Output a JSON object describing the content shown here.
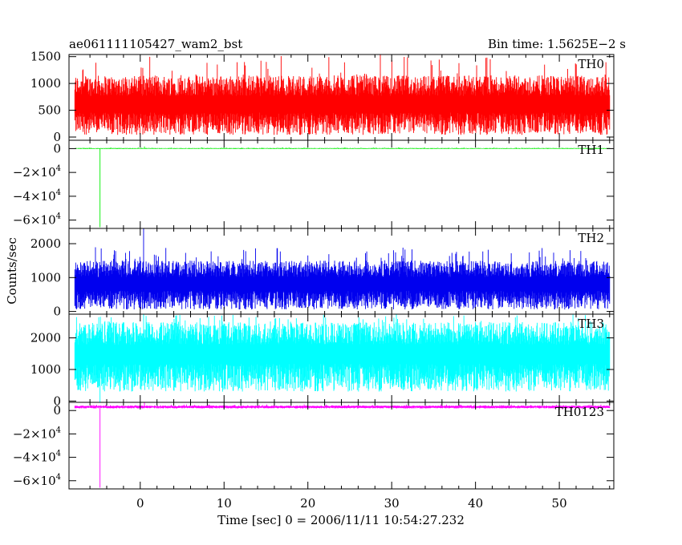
{
  "header": {
    "obs_id": "ae061111105427_wam2_bst",
    "bin_time": "Bin time: 1.5625E−2 s"
  },
  "chart_data": {
    "type": "line",
    "xlabel": "Time [sec] 0 = 2006/11/11 10:54:27.232",
    "ylabel": "Counts/sec",
    "xlim": [
      -8.5,
      56.5
    ],
    "x_range": [
      -7.8,
      56.0
    ],
    "x_ticks": [
      0,
      10,
      20,
      30,
      40,
      50
    ],
    "grid": false,
    "panels": [
      {
        "name": "TH0",
        "color": "#ff0000",
        "ylim": [
          -60,
          1540
        ],
        "y_ticks": [
          {
            "value": 0,
            "label": "0"
          },
          {
            "value": 500,
            "label": "500"
          },
          {
            "value": 1000,
            "label": "1000"
          },
          {
            "value": 1500,
            "label": "1500"
          }
        ],
        "base": 560,
        "noise_low": 40,
        "noise_high": 1150,
        "spike_max": 1540,
        "features": []
      },
      {
        "name": "TH1",
        "color": "#00ee00",
        "ylim": [
          -67000,
          7000
        ],
        "y_ticks": [
          {
            "value": 0,
            "mant": "0",
            "exp": ""
          },
          {
            "value": -20000,
            "mant": "−2×10",
            "exp": "4"
          },
          {
            "value": -40000,
            "mant": "−4×10",
            "exp": "4"
          },
          {
            "value": -60000,
            "mant": "−6×10",
            "exp": "4"
          }
        ],
        "base": 100,
        "noise_low": -300,
        "noise_high": 500,
        "spike_max": 900,
        "features": [
          {
            "x": -4.8,
            "y": -66000
          },
          {
            "x": 0.5,
            "y": 1800
          }
        ]
      },
      {
        "name": "TH2",
        "color": "#0000ee",
        "ylim": [
          -80,
          2450
        ],
        "y_ticks": [
          {
            "value": 0,
            "label": "0"
          },
          {
            "value": 1000,
            "label": "1000"
          },
          {
            "value": 2000,
            "label": "2000"
          }
        ],
        "base": 750,
        "noise_low": 60,
        "noise_high": 1500,
        "spike_max": 1900,
        "features": [
          {
            "x": 0.4,
            "y": 2450
          }
        ]
      },
      {
        "name": "TH3",
        "color": "#00ffff",
        "ylim": [
          -40,
          2750
        ],
        "y_ticks": [
          {
            "value": 0,
            "label": "0"
          },
          {
            "value": 1000,
            "label": "1000"
          },
          {
            "value": 2000,
            "label": "2000"
          }
        ],
        "base": 1400,
        "noise_low": 300,
        "noise_high": 2500,
        "spike_max": 2750,
        "features": [
          {
            "x": -4.8,
            "y": -40
          },
          {
            "x": 0.4,
            "y": 2750
          }
        ]
      },
      {
        "name": "TH0123",
        "color": "#ff00ff",
        "ylim": [
          -67000,
          7000
        ],
        "y_ticks": [
          {
            "value": 0,
            "mant": "0",
            "exp": ""
          },
          {
            "value": -20000,
            "mant": "−2×10",
            "exp": "4"
          },
          {
            "value": -40000,
            "mant": "−4×10",
            "exp": "4"
          },
          {
            "value": -60000,
            "mant": "−6×10",
            "exp": "4"
          }
        ],
        "base": 3000,
        "noise_low": 1800,
        "noise_high": 4300,
        "spike_max": 5200,
        "features": [
          {
            "x": -4.8,
            "y": -66000
          },
          {
            "x": 0.5,
            "y": 7000
          }
        ]
      }
    ]
  }
}
